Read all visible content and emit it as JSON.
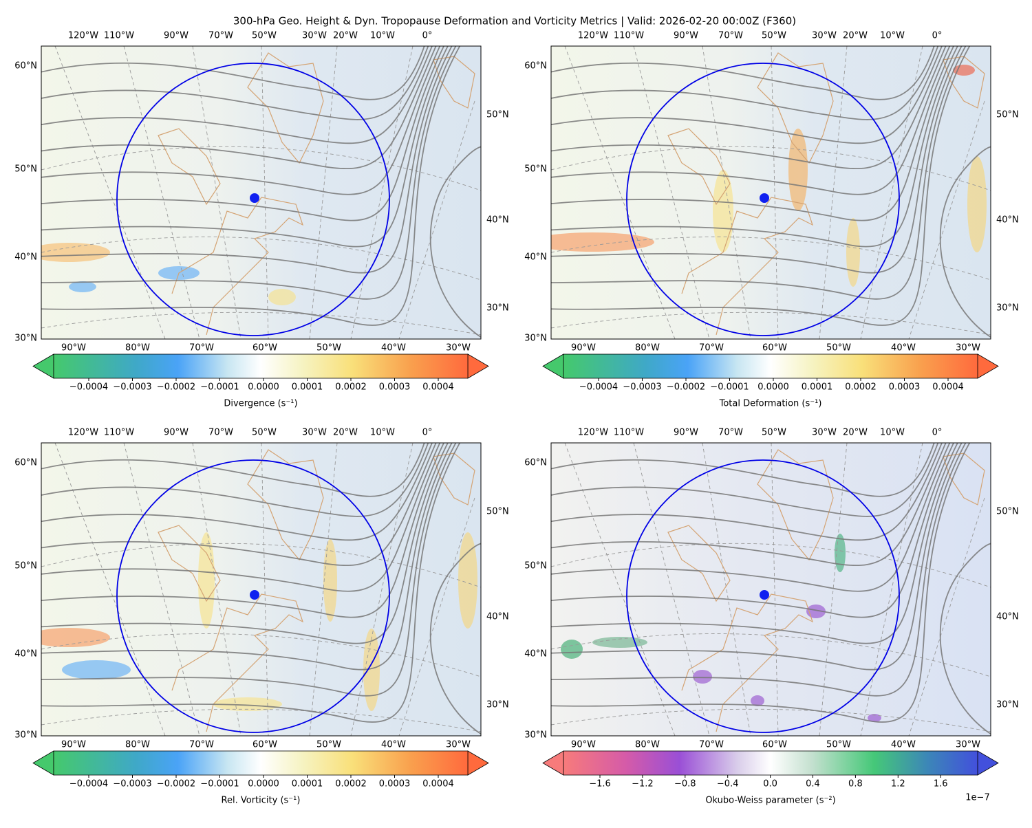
{
  "title": "300-hPa Geo. Height & Dyn. Tropopause Deformation and Vorticity Metrics |  Valid: 2026-02-20 00:00Z (F360)",
  "map_axes": {
    "top_labels": [
      "120°W",
      "110°W",
      "90°W",
      "70°W",
      "50°W",
      "30°W",
      "20°W",
      "10°W",
      "0°"
    ],
    "left_labels": [
      "60°N",
      "50°N",
      "40°N",
      "30°N"
    ],
    "right_labels": [
      "50°N",
      "40°N",
      "30°N"
    ],
    "bottom_labels": [
      "90°W",
      "80°W",
      "70°W",
      "60°W",
      "50°W",
      "40°W",
      "30°W"
    ]
  },
  "panels": [
    {
      "colorbar": {
        "label": "Divergence (s⁻¹)",
        "ticks": [
          "−0.0004",
          "−0.0003",
          "−0.0002",
          "−0.0001",
          "0.0000",
          "0.0001",
          "0.0002",
          "0.0003",
          "0.0004"
        ]
      }
    },
    {
      "colorbar": {
        "label": "Total Deformation (s⁻¹)",
        "ticks": [
          "−0.0004",
          "−0.0003",
          "−0.0002",
          "−0.0001",
          "0.0000",
          "0.0001",
          "0.0002",
          "0.0003",
          "0.0004"
        ]
      }
    },
    {
      "colorbar": {
        "label": "Rel. Vorticity (s⁻¹)",
        "ticks": [
          "−0.0004",
          "−0.0003",
          "−0.0002",
          "−0.0001",
          "0.0000",
          "0.0001",
          "0.0002",
          "0.0003",
          "0.0004"
        ]
      }
    },
    {
      "colorbar": {
        "label": "Okubo-Weiss parameter (s⁻²)",
        "ticks": [
          "−1.6",
          "−1.2",
          "−0.8",
          "−0.4",
          "0.0",
          "0.4",
          "0.8",
          "1.2",
          "1.6"
        ],
        "offset_label": "1e−7"
      }
    }
  ]
}
